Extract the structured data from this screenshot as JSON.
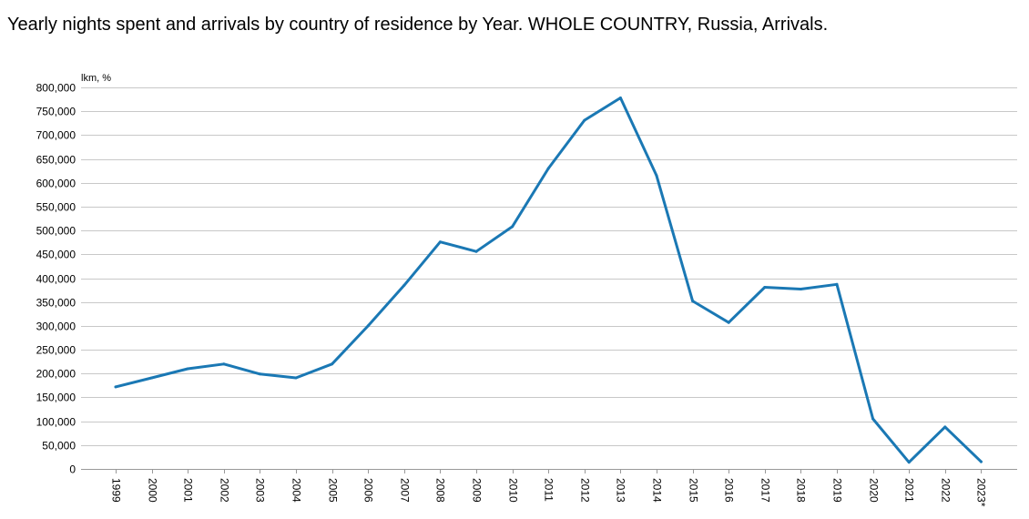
{
  "title": "Yearly nights spent and arrivals by country of residence by Year. WHOLE COUNTRY, Russia, Arrivals.",
  "chart_data": {
    "type": "line",
    "title": "Yearly nights spent and arrivals by country of residence by Year. WHOLE COUNTRY, Russia, Arrivals.",
    "unit_label": "lkm, %",
    "xlabel": "",
    "ylabel": "",
    "categories": [
      "1999",
      "2000",
      "2001",
      "2002",
      "2003",
      "2004",
      "2005",
      "2006",
      "2007",
      "2008",
      "2009",
      "2010",
      "2011",
      "2012",
      "2013",
      "2014",
      "2015",
      "2016",
      "2017",
      "2018",
      "2019",
      "2020",
      "2021",
      "2022",
      "2023*"
    ],
    "series": [
      {
        "values": [
          172000,
          191000,
          210000,
          220000,
          199000,
          191000,
          220000,
          300000,
          385000,
          476000,
          456000,
          508000,
          630000,
          731000,
          778000,
          615000,
          352000,
          307000,
          381000,
          377000,
          387000,
          105000,
          14000,
          88000,
          15000
        ],
        "color": "#1a78b4"
      }
    ],
    "ylim": [
      0,
      800000
    ],
    "yticks": [
      0,
      50000,
      100000,
      150000,
      200000,
      250000,
      300000,
      350000,
      400000,
      450000,
      500000,
      550000,
      600000,
      650000,
      700000,
      750000,
      800000
    ],
    "ytick_labels": [
      "0",
      "50,000",
      "100,000",
      "150,000",
      "200,000",
      "250,000",
      "300,000",
      "350,000",
      "400,000",
      "450,000",
      "500,000",
      "550,000",
      "600,000",
      "650,000",
      "700,000",
      "750,000",
      "800,000"
    ],
    "grid": true,
    "grid_color": "#c8c8c8",
    "axis_color": "#999999",
    "legend": "none"
  }
}
